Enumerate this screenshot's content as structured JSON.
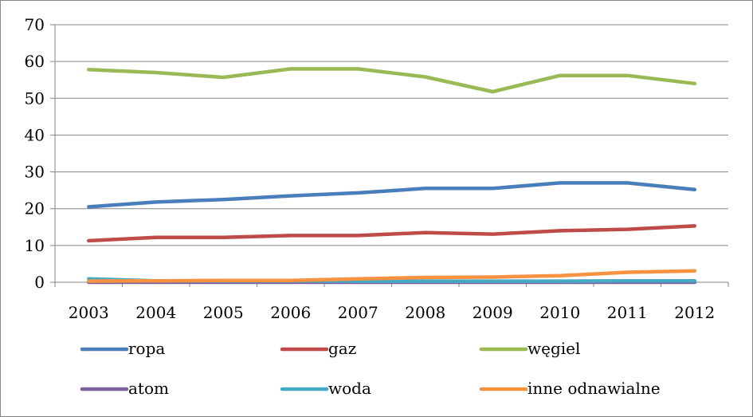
{
  "chart_data": {
    "type": "line",
    "title": "",
    "xlabel": "",
    "ylabel": "",
    "ylim": [
      0,
      70
    ],
    "yticks": [
      0,
      10,
      20,
      30,
      40,
      50,
      60,
      70
    ],
    "grid": "horizontal",
    "legend_position": "bottom",
    "categories": [
      "2003",
      "2004",
      "2005",
      "2006",
      "2007",
      "2008",
      "2009",
      "2010",
      "2011",
      "2012"
    ],
    "series": [
      {
        "name": "ropa",
        "color": "#4a7ebb",
        "values": [
          20.5,
          21.8,
          22.5,
          23.5,
          24.3,
          25.5,
          25.5,
          27.0,
          27.0,
          25.2
        ]
      },
      {
        "name": "gaz",
        "color": "#be4b48",
        "values": [
          11.3,
          12.2,
          12.2,
          12.7,
          12.7,
          13.5,
          13.1,
          14.0,
          14.4,
          15.3
        ]
      },
      {
        "name": "węgiel",
        "color": "#98b954",
        "values": [
          57.8,
          57.0,
          55.7,
          58.0,
          58.0,
          55.8,
          51.8,
          56.2,
          56.2,
          54.0
        ]
      },
      {
        "name": "atom",
        "color": "#7d60a0",
        "values": [
          0,
          0,
          0,
          0,
          0,
          0,
          0,
          0,
          0,
          0
        ]
      },
      {
        "name": "woda",
        "color": "#46aac5",
        "values": [
          0.9,
          0.4,
          0.4,
          0.4,
          0.3,
          0.3,
          0.3,
          0.3,
          0.4,
          0.4
        ]
      },
      {
        "name": "inne odnawialne",
        "color": "#f69240",
        "values": [
          0.3,
          0.4,
          0.5,
          0.5,
          0.9,
          1.3,
          1.4,
          1.8,
          2.7,
          3.1
        ]
      }
    ]
  }
}
